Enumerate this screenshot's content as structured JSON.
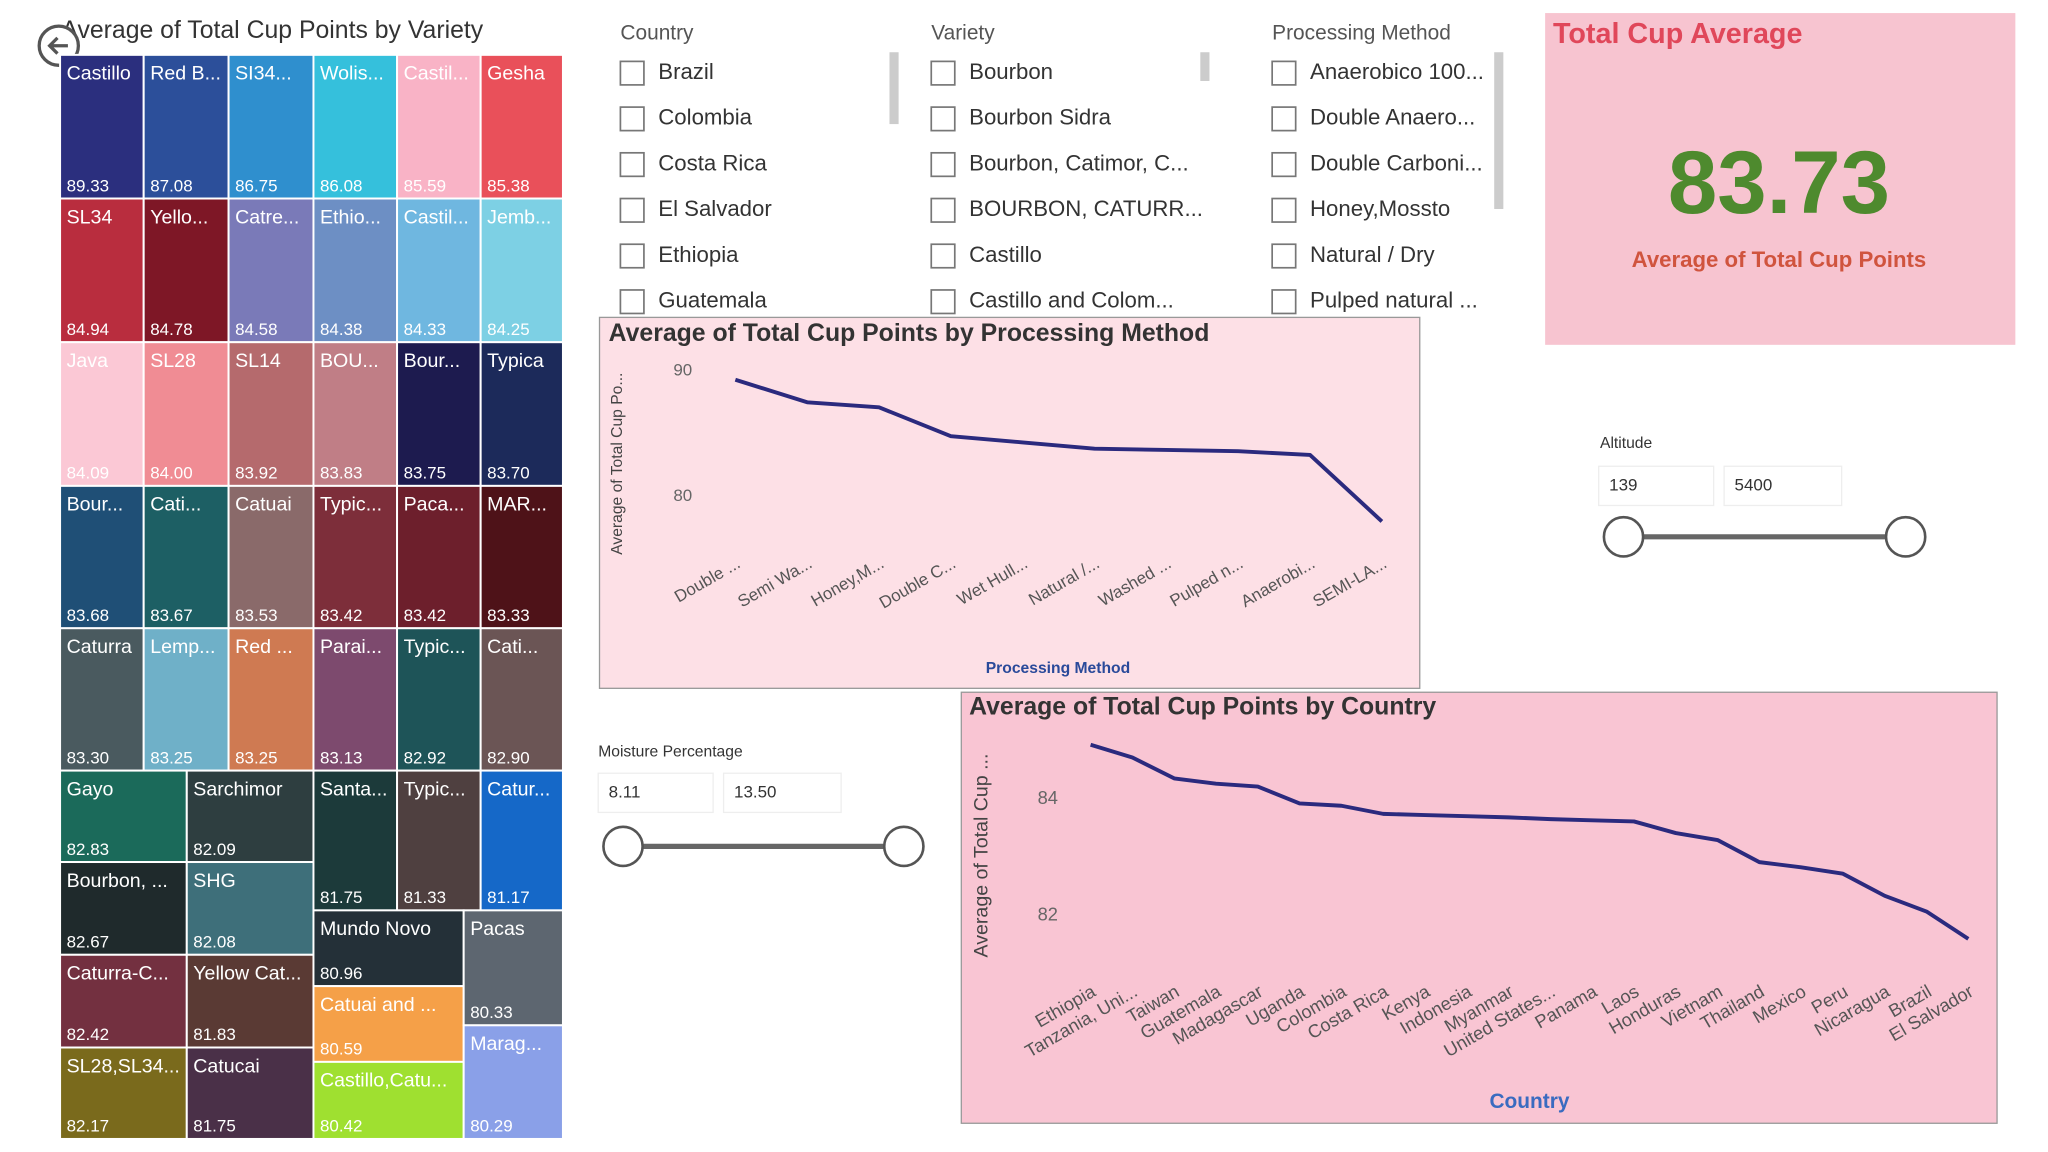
{
  "chart_data": [
    {
      "type": "treemap",
      "title": "Average of Total Cup Points by Variety",
      "categories": [
        "Castillo",
        "Red B...",
        "SI34...",
        "Wolis...",
        "Castil...",
        "Gesha",
        "SL34",
        "Yello...",
        "Catre...",
        "Ethio...",
        "Castil...",
        "Jemb...",
        "Java",
        "SL28",
        "SL14",
        "BOU...",
        "Bour...",
        "Typica",
        "Bour...",
        "Cati...",
        "Catuai",
        "Typic...",
        "Paca...",
        "MAR...",
        "Caturra",
        "Lemp...",
        "Red ...",
        "Parai...",
        "Typic...",
        "Cati...",
        "Gayo",
        "Bourbon, ...",
        "Caturra-C...",
        "SL28,SL34...",
        "Sarchimor",
        "SHG",
        "Yellow Cat...",
        "Santa...",
        "Catucai",
        "Typic...",
        "Catur...",
        "Mundo Novo",
        "Catuai and ...",
        "Castillo,Catu...",
        "Pacas",
        "Marag..."
      ],
      "values": [
        89.33,
        87.08,
        86.75,
        86.08,
        85.59,
        85.38,
        84.94,
        84.78,
        84.58,
        84.38,
        84.33,
        84.25,
        84.09,
        84.0,
        83.92,
        83.83,
        83.75,
        83.7,
        83.68,
        83.67,
        83.53,
        83.42,
        83.42,
        83.33,
        83.3,
        83.25,
        83.25,
        83.13,
        82.92,
        82.9,
        82.83,
        82.67,
        82.42,
        82.17,
        82.09,
        82.08,
        81.83,
        81.75,
        81.75,
        81.33,
        81.17,
        80.96,
        80.59,
        80.42,
        80.33,
        80.29
      ],
      "value_labels": [
        "89.33",
        "87.08",
        "86.75",
        "86.08",
        "85.59",
        "85.38",
        "84.94",
        "84.78",
        "84.58",
        "84.38",
        "84.33",
        "84.25",
        "84.09",
        "84.00",
        "83.92",
        "83.83",
        "83.75",
        "83.70",
        "83.68",
        "83.67",
        "83.53",
        "83.42",
        "83.42",
        "83.33",
        "83.30",
        "83.25",
        "83.25",
        "83.13",
        "82.92",
        "82.90",
        "82.83",
        "82.67",
        "82.42",
        "82.17",
        "82.09",
        "82.08",
        "81.83",
        "81.75",
        "81.75",
        "81.33",
        "81.17",
        "80.96",
        "80.59",
        "80.42",
        "80.33",
        "80.29"
      ],
      "colors": [
        "#2b2f7e",
        "#2c4f9a",
        "#2f8fce",
        "#35c0dc",
        "#f9b3c6",
        "#e9505a",
        "#b92d3e",
        "#7e1726",
        "#7a7ab8",
        "#6d8fc4",
        "#6fb7e0",
        "#7dd0e4",
        "#fbc8d5",
        "#f08c94",
        "#b56a6d",
        "#c07e86",
        "#1d1b4f",
        "#1c2a5a",
        "#1f4f76",
        "#1d5f64",
        "#8a6a6a",
        "#7d2e3a",
        "#6d1f2c",
        "#4e1218",
        "#4a5a5f",
        "#6fb0c8",
        "#cf7a52",
        "#7d4a6e",
        "#1e5458",
        "#6b5555",
        "#1b6a5a",
        "#1f2a2c",
        "#733040",
        "#7a6a1c",
        "#2e3e40",
        "#3e6f7a",
        "#5a3a34",
        "#1c3a3a",
        "#4a3048",
        "#4f4040",
        "#1568c8",
        "#243038",
        "#f5a048",
        "#9fe030",
        "#5d6670",
        "#8aa0e8"
      ]
    },
    {
      "type": "line",
      "title": "Average of Total Cup Points by Processing Method",
      "x_label": "Processing Method",
      "y_label": "Average of Total Cup Po...",
      "categories": [
        "Double ...",
        "Semi Wa...",
        "Honey,M...",
        "Double C...",
        "Wet Hull...",
        "Natural /...",
        "Washed ...",
        "Pulped n...",
        "Anaerobi...",
        "SEMI-LA..."
      ],
      "values": [
        89.3,
        87.5,
        87.1,
        84.8,
        84.3,
        83.8,
        83.7,
        83.6,
        83.3,
        78.0
      ],
      "color": "#2b2a7e",
      "ylim": [
        77,
        91
      ],
      "yticks": [
        80,
        90
      ]
    },
    {
      "type": "line",
      "title": "Average of Total Cup Points by Country",
      "x_label": "Country",
      "y_label": "Average of Total Cup ...",
      "categories": [
        "Ethiopia",
        "Tanzania, Uni...",
        "Taiwan",
        "Guatemala",
        "Madagascar",
        "Uganda",
        "Colombia",
        "Costa Rica",
        "Kenya",
        "Indonesia",
        "Myanmar",
        "United States...",
        "Panama",
        "Laos",
        "Honduras",
        "Vietnam",
        "Thailand",
        "Mexico",
        "Peru",
        "Nicaragua",
        "Brazil",
        "El Salvador"
      ],
      "values": [
        84.94,
        84.72,
        84.36,
        84.27,
        84.22,
        83.93,
        83.89,
        83.75,
        83.73,
        83.71,
        83.69,
        83.66,
        83.64,
        83.62,
        83.42,
        83.3,
        82.92,
        82.83,
        82.72,
        82.34,
        82.07,
        81.6
      ],
      "color": "#2b2a7e",
      "ylim": [
        81.2,
        85.2
      ],
      "yticks": [
        82,
        84
      ]
    }
  ],
  "slicers": [
    {
      "title": "Country",
      "items": [
        "Brazil",
        "Colombia",
        "Costa Rica",
        "El Salvador",
        "Ethiopia",
        "Guatemala"
      ]
    },
    {
      "title": "Variety",
      "items": [
        "Bourbon",
        "Bourbon Sidra",
        "Bourbon, Catimor, C...",
        "BOURBON, CATURR...",
        "Castillo",
        "Castillo and Colom..."
      ]
    },
    {
      "title": "Processing Method",
      "items": [
        "Anaerobico 100...",
        "Double Anaero...",
        "Double Carboni...",
        "Honey,Mossto",
        "Natural / Dry",
        "Pulped natural ..."
      ]
    }
  ],
  "card": {
    "title": "Total Cup Average",
    "value": 83.73,
    "label": "Average of Total Cup Points"
  },
  "altitude": {
    "title": "Altitude",
    "min": "139",
    "max": "5400"
  },
  "moisture": {
    "title": "Moisture Percentage",
    "min": "8.11",
    "max": "13.50"
  }
}
